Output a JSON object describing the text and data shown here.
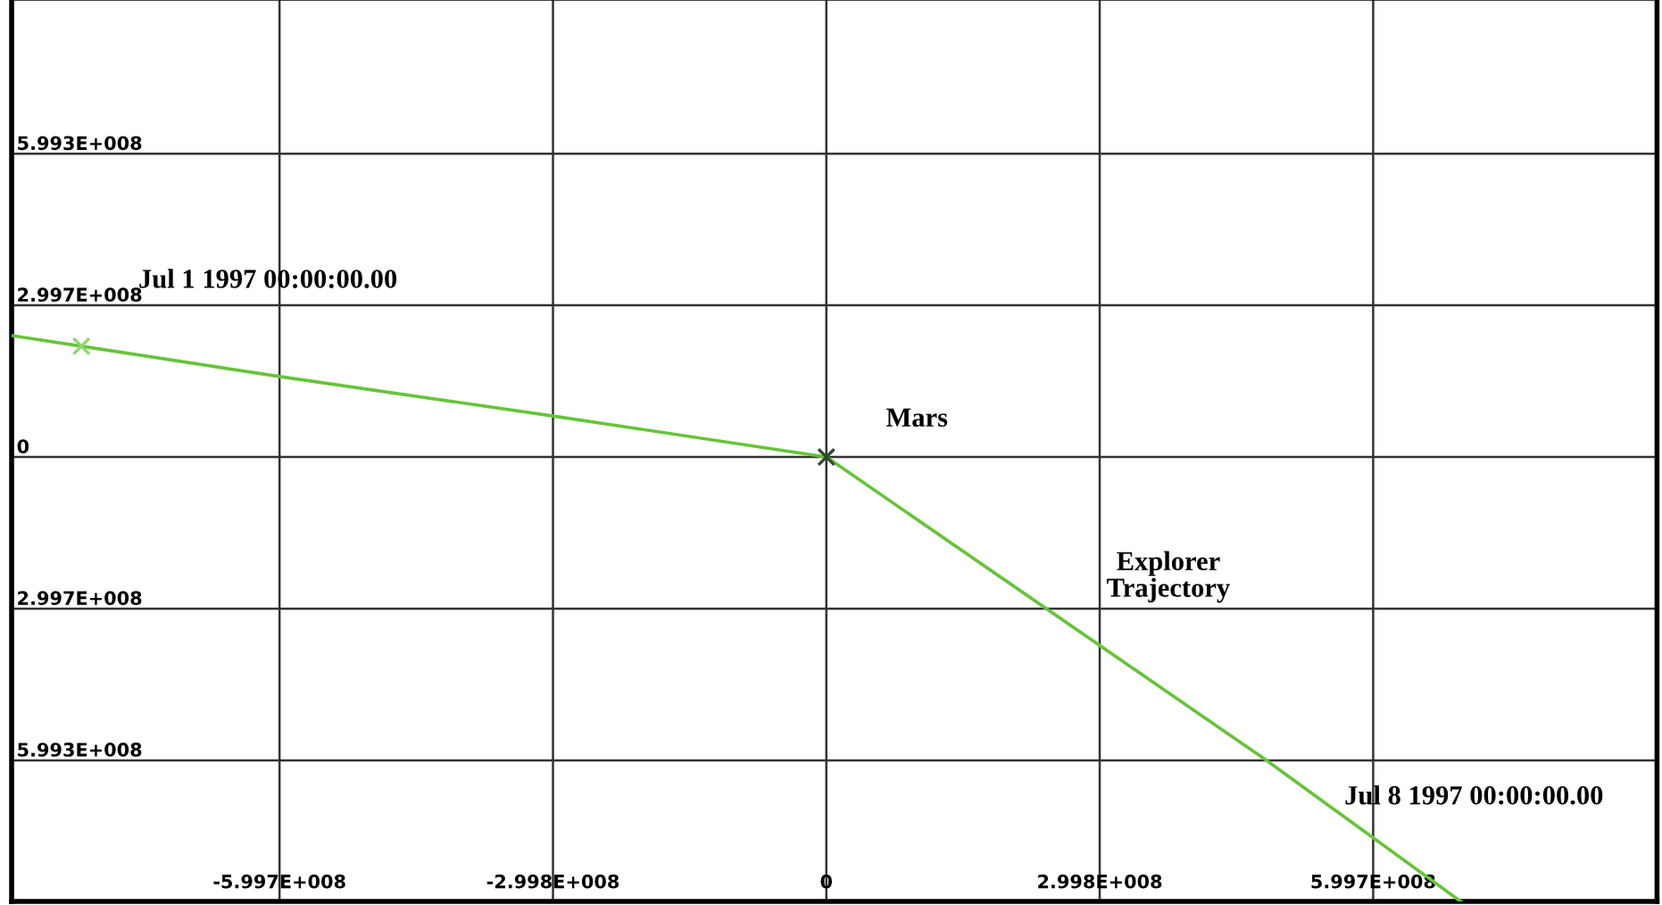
{
  "chart_data": {
    "type": "line",
    "xlim": [
      -893500000.0,
      911000000.0
    ],
    "ylim": [
      -878000000.0,
      903000000.0
    ],
    "xticks": [
      {
        "value": -599700000.0,
        "label": "-5.997E+008"
      },
      {
        "value": -299800000.0,
        "label": "-2.998E+008"
      },
      0,
      {
        "value": 299800000.0,
        "label": "2.998E+008"
      },
      {
        "value": 599700000.0,
        "label": "5.997E+008"
      }
    ],
    "yticks": [
      {
        "value": 599300000.0,
        "label": "5.993E+008"
      },
      {
        "value": 299700000.0,
        "label": "2.997E+008"
      },
      0,
      {
        "value": -299700000.0,
        "label": "2.997E+008"
      },
      {
        "value": -599300000.0,
        "label": "5.993E+008"
      }
    ],
    "grid": true,
    "series": [
      {
        "color": "#66c43a",
        "x": [
          -893500000.0,
          -817000000.0,
          -599700000.0,
          -299800000.0,
          0,
          480000000.0,
          695600000.0
        ],
        "values": [
          240000000.0,
          219000000.0,
          159000000.0,
          81000000.0,
          0,
          -596000000.0,
          -878000000.0
        ]
      },
      {
        "type": "scatter",
        "marker": "cross",
        "colors": [
          "#8fd66a",
          "#2f4a2a"
        ],
        "x": [
          -817000000.0,
          0
        ],
        "values": [
          219000000.0,
          0
        ]
      }
    ],
    "annotations": [
      "Jul 1 1997 00:00:00.00",
      {
        "text": "Mars",
        "x": 0,
        "y": 0
      },
      "Explorer\nTrajectory",
      "Jul 8 1997 00:00:00.00"
    ]
  }
}
